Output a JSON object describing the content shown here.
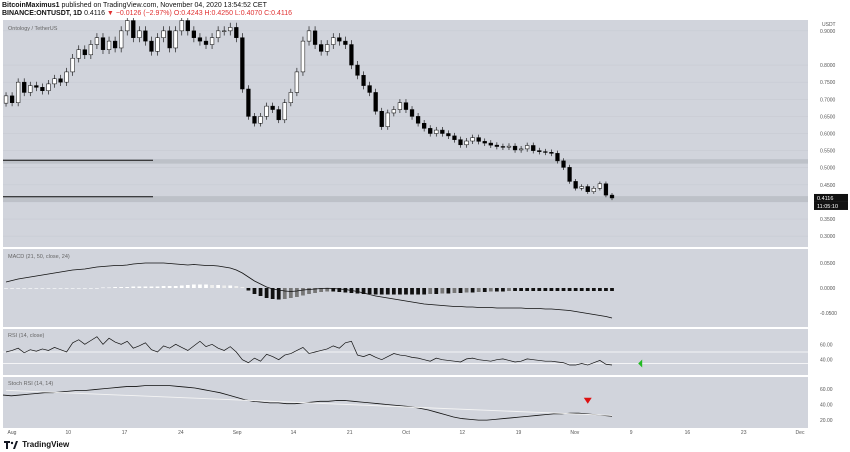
{
  "header": {
    "publish_line_user": "BitcoinMaximus1",
    "publish_line_rest": "published on TradingView.com, November 04, 2020 13:54:52 CET",
    "symbol": "BINANCE:ONTUSDT, 1D",
    "price": "0.4116",
    "change": "−0.0126 (−2.97%)",
    "ohlc": "O:0.4243 H:0.4250 L:0.4070 C:0.4116"
  },
  "footer": {
    "brand": "TradingView"
  },
  "colors": {
    "panel_bg": "#d1d4dc",
    "grid": "#c3c6ce",
    "candle_up": "#ffffff",
    "candle_down": "#000000",
    "arrow_green": "#22bb22",
    "arrow_red": "#dd1111"
  },
  "chart_data": [
    {
      "type": "candlestick",
      "title": "Ontology / TetherUS",
      "xlabel": "",
      "ylabel": "",
      "x_ticks": [
        "Aug",
        "10",
        "17",
        "24",
        "Sep",
        "14",
        "21",
        "Oct",
        "12",
        "19",
        "Nov",
        "9",
        "16",
        "23",
        "Dec"
      ],
      "y_ticks": [
        "0.9000",
        "0.8000",
        "0.7500",
        "0.7000",
        "0.6500",
        "0.6000",
        "0.5500",
        "0.5000",
        "0.4500",
        "0.4000",
        "0.3500",
        "0.3000"
      ],
      "y_axis_title": "USDT",
      "last_price_label": "0.4116",
      "countdown_label": "11:05:10",
      "horizontal_lines": [
        0.522,
        0.415
      ],
      "support_zones": [
        [
          0.512,
          0.525
        ],
        [
          0.4,
          0.417
        ]
      ],
      "closes": [
        0.71,
        0.69,
        0.75,
        0.72,
        0.74,
        0.735,
        0.725,
        0.745,
        0.76,
        0.75,
        0.78,
        0.82,
        0.845,
        0.83,
        0.86,
        0.88,
        0.845,
        0.87,
        0.85,
        0.9,
        0.93,
        0.88,
        0.9,
        0.87,
        0.84,
        0.88,
        0.9,
        0.85,
        0.9,
        0.93,
        0.9,
        0.88,
        0.87,
        0.86,
        0.88,
        0.9,
        0.9,
        0.91,
        0.88,
        0.73,
        0.65,
        0.63,
        0.65,
        0.68,
        0.67,
        0.64,
        0.69,
        0.72,
        0.78,
        0.87,
        0.9,
        0.86,
        0.84,
        0.86,
        0.88,
        0.87,
        0.86,
        0.8,
        0.77,
        0.74,
        0.72,
        0.665,
        0.62,
        0.66,
        0.67,
        0.69,
        0.67,
        0.65,
        0.63,
        0.615,
        0.6,
        0.61,
        0.6,
        0.593,
        0.582,
        0.567,
        0.578,
        0.588,
        0.577,
        0.572,
        0.566,
        0.562,
        0.56,
        0.563,
        0.552,
        0.555,
        0.565,
        0.55,
        0.547,
        0.545,
        0.542,
        0.52,
        0.501,
        0.46,
        0.44,
        0.445,
        0.43,
        0.44,
        0.453,
        0.42,
        0.4116
      ]
    },
    {
      "type": "macd",
      "title": "MACD (21, 50, close, 24)",
      "y_ticks": [
        "0.0500",
        "0.0000",
        "-0.0500"
      ],
      "macd": [
        0.012,
        0.015,
        0.018,
        0.02,
        0.022,
        0.024,
        0.026,
        0.028,
        0.03,
        0.032,
        0.034,
        0.036,
        0.037,
        0.038,
        0.04,
        0.042,
        0.043,
        0.044,
        0.045,
        0.045,
        0.046,
        0.048,
        0.049,
        0.05,
        0.05,
        0.05,
        0.05,
        0.049,
        0.048,
        0.047,
        0.046,
        0.047,
        0.046,
        0.045,
        0.045,
        0.044,
        0.042,
        0.04,
        0.036,
        0.03,
        0.022,
        0.014,
        0.008,
        0.002,
        -0.002,
        -0.004,
        -0.006,
        -0.007,
        -0.006,
        -0.004,
        -0.003,
        -0.002,
        -0.001,
        -0.0005,
        -0.001,
        -0.002,
        -0.003,
        -0.005,
        -0.007,
        -0.01,
        -0.013,
        -0.016,
        -0.018,
        -0.02,
        -0.022,
        -0.024,
        -0.026,
        -0.028,
        -0.03,
        -0.032,
        -0.033,
        -0.034,
        -0.035,
        -0.036,
        -0.037,
        -0.037,
        -0.038,
        -0.038,
        -0.039,
        -0.039,
        -0.039,
        -0.04,
        -0.04,
        -0.04,
        -0.04,
        -0.04,
        -0.041,
        -0.041,
        -0.041,
        -0.042,
        -0.042,
        -0.043,
        -0.044,
        -0.045,
        -0.047,
        -0.049,
        -0.051,
        -0.053,
        -0.055,
        -0.057,
        -0.06
      ],
      "histogram": [
        0.0,
        0.0,
        0.0,
        0.0,
        0.0,
        0.0,
        0.0,
        0.0,
        0.0,
        0.0,
        0.0,
        0.0,
        0.0,
        0.0,
        0.0,
        0.0,
        0.001,
        0.001,
        0.002,
        0.002,
        0.002,
        0.003,
        0.003,
        0.003,
        0.003,
        0.003,
        0.004,
        0.004,
        0.004,
        0.005,
        0.006,
        0.007,
        0.007,
        0.007,
        0.006,
        0.006,
        0.005,
        0.005,
        0.004,
        0.002,
        -0.005,
        -0.012,
        -0.016,
        -0.02,
        -0.022,
        -0.023,
        -0.022,
        -0.02,
        -0.018,
        -0.015,
        -0.012,
        -0.01,
        -0.008,
        -0.007,
        -0.007,
        -0.008,
        -0.009,
        -0.01,
        -0.011,
        -0.012,
        -0.012,
        -0.013,
        -0.013,
        -0.013,
        -0.013,
        -0.013,
        -0.013,
        -0.013,
        -0.013,
        -0.013,
        -0.012,
        -0.012,
        -0.011,
        -0.011,
        -0.01,
        -0.01,
        -0.009,
        -0.009,
        -0.008,
        -0.008,
        -0.007,
        -0.007,
        -0.007,
        -0.006,
        -0.006,
        -0.006,
        -0.006,
        -0.006,
        -0.006,
        -0.006,
        -0.006,
        -0.006,
        -0.006,
        -0.006,
        -0.006,
        -0.006,
        -0.006,
        -0.006,
        -0.006,
        -0.006,
        -0.006
      ]
    },
    {
      "type": "line",
      "title": "RSI (14, close)",
      "y_ticks": [
        "60.00",
        "40.00"
      ],
      "reference_lines": [
        50,
        35
      ],
      "values": [
        50,
        52,
        55,
        49,
        53,
        51,
        54,
        52,
        56,
        53,
        50,
        62,
        66,
        60,
        65,
        70,
        60,
        68,
        63,
        60,
        64,
        55,
        58,
        62,
        53,
        50,
        58,
        55,
        60,
        56,
        52,
        58,
        64,
        57,
        60,
        55,
        52,
        57,
        50,
        40,
        36,
        42,
        38,
        47,
        44,
        40,
        46,
        48,
        52,
        56,
        48,
        50,
        52,
        54,
        58,
        55,
        62,
        64,
        46,
        44,
        47,
        43,
        40,
        44,
        48,
        46,
        45,
        43,
        42,
        40,
        38,
        42,
        40,
        39,
        38,
        37,
        41,
        42,
        40,
        39,
        38,
        40,
        41,
        39,
        37,
        38,
        41,
        40,
        39,
        38,
        38,
        37,
        36,
        33,
        33,
        35,
        33,
        36,
        39,
        34,
        33
      ]
    },
    {
      "type": "line",
      "title": "Stoch RSI (14, 14)",
      "y_ticks": [
        "60.00",
        "40.00",
        "20.00"
      ],
      "values": [
        52,
        51,
        52,
        53,
        54,
        55,
        55,
        56,
        57,
        58,
        58,
        59,
        60,
        61,
        62,
        63,
        63,
        64,
        64,
        64,
        64,
        63,
        62,
        61,
        59,
        57,
        55,
        52,
        49,
        46,
        44,
        43,
        42,
        42,
        41,
        41,
        42,
        43,
        44,
        44,
        45,
        45,
        44,
        43,
        42,
        41,
        40,
        39,
        38,
        37,
        35,
        33,
        30,
        27,
        24,
        22,
        21,
        20,
        20,
        21,
        22,
        23,
        24,
        25,
        26,
        27,
        28,
        28,
        29,
        29,
        28,
        27,
        26,
        25
      ],
      "trend_line": [
        [
          0,
          58
        ],
        [
          100,
          26
        ]
      ],
      "signal_down_index": 96
    }
  ],
  "arrows": [
    {
      "name": "green-signal-arrow",
      "panel": 2,
      "direction": "left",
      "x_index": 103,
      "value": 35
    },
    {
      "name": "red-signal-arrow",
      "panel": 3,
      "direction": "down",
      "x_index": 96,
      "value": 32
    }
  ]
}
